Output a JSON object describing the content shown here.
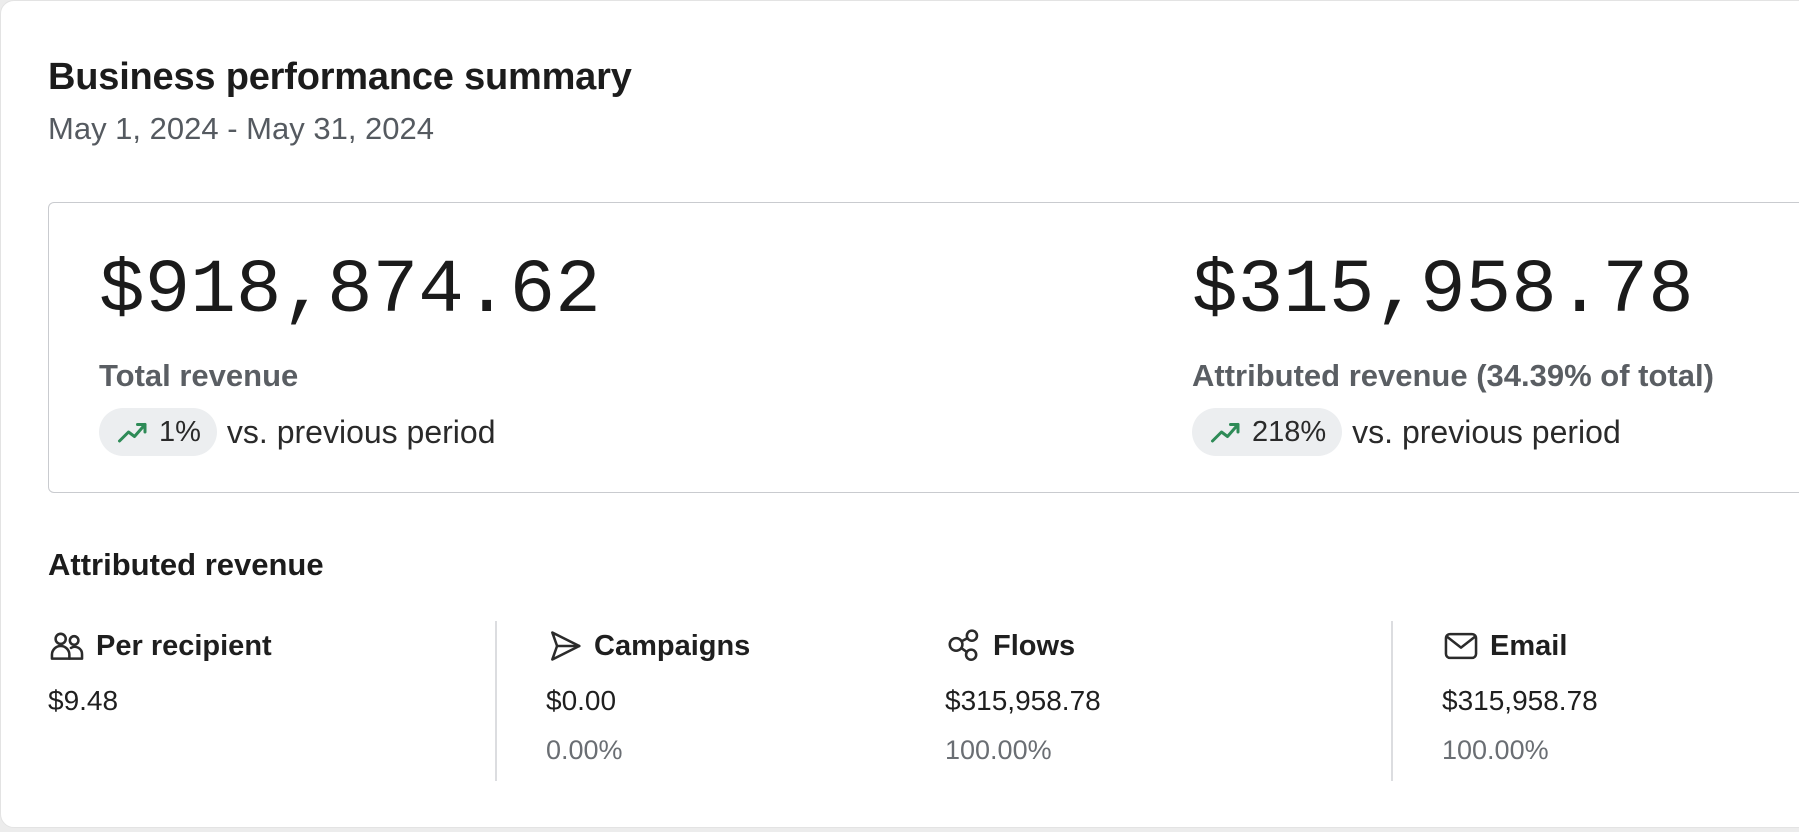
{
  "header": {
    "title": "Business performance summary",
    "date_range": "May 1, 2024 - May 31, 2024"
  },
  "summary": {
    "total": {
      "value": "$918,874.62",
      "label": "Total revenue",
      "change": "1%",
      "suffix": "vs. previous period"
    },
    "attributed": {
      "value": "$315,958.78",
      "label": "Attributed revenue (34.39% of total)",
      "change": "218%",
      "suffix": "vs. previous period"
    }
  },
  "attributed_section": {
    "title": "Attributed revenue",
    "stats": [
      {
        "icon": "people-icon",
        "label": "Per recipient",
        "value": "$9.48",
        "percent": ""
      },
      {
        "icon": "send-icon",
        "label": "Campaigns",
        "value": "$0.00",
        "percent": "0.00%"
      },
      {
        "icon": "flows-icon",
        "label": "Flows",
        "value": "$315,958.78",
        "percent": "100.00%"
      },
      {
        "icon": "mail-icon",
        "label": "Email",
        "value": "$315,958.78",
        "percent": "100.00%"
      }
    ]
  },
  "colors": {
    "trend_up": "#2e8b57",
    "badge_bg": "#eceef0",
    "border": "#c9cbcf"
  }
}
